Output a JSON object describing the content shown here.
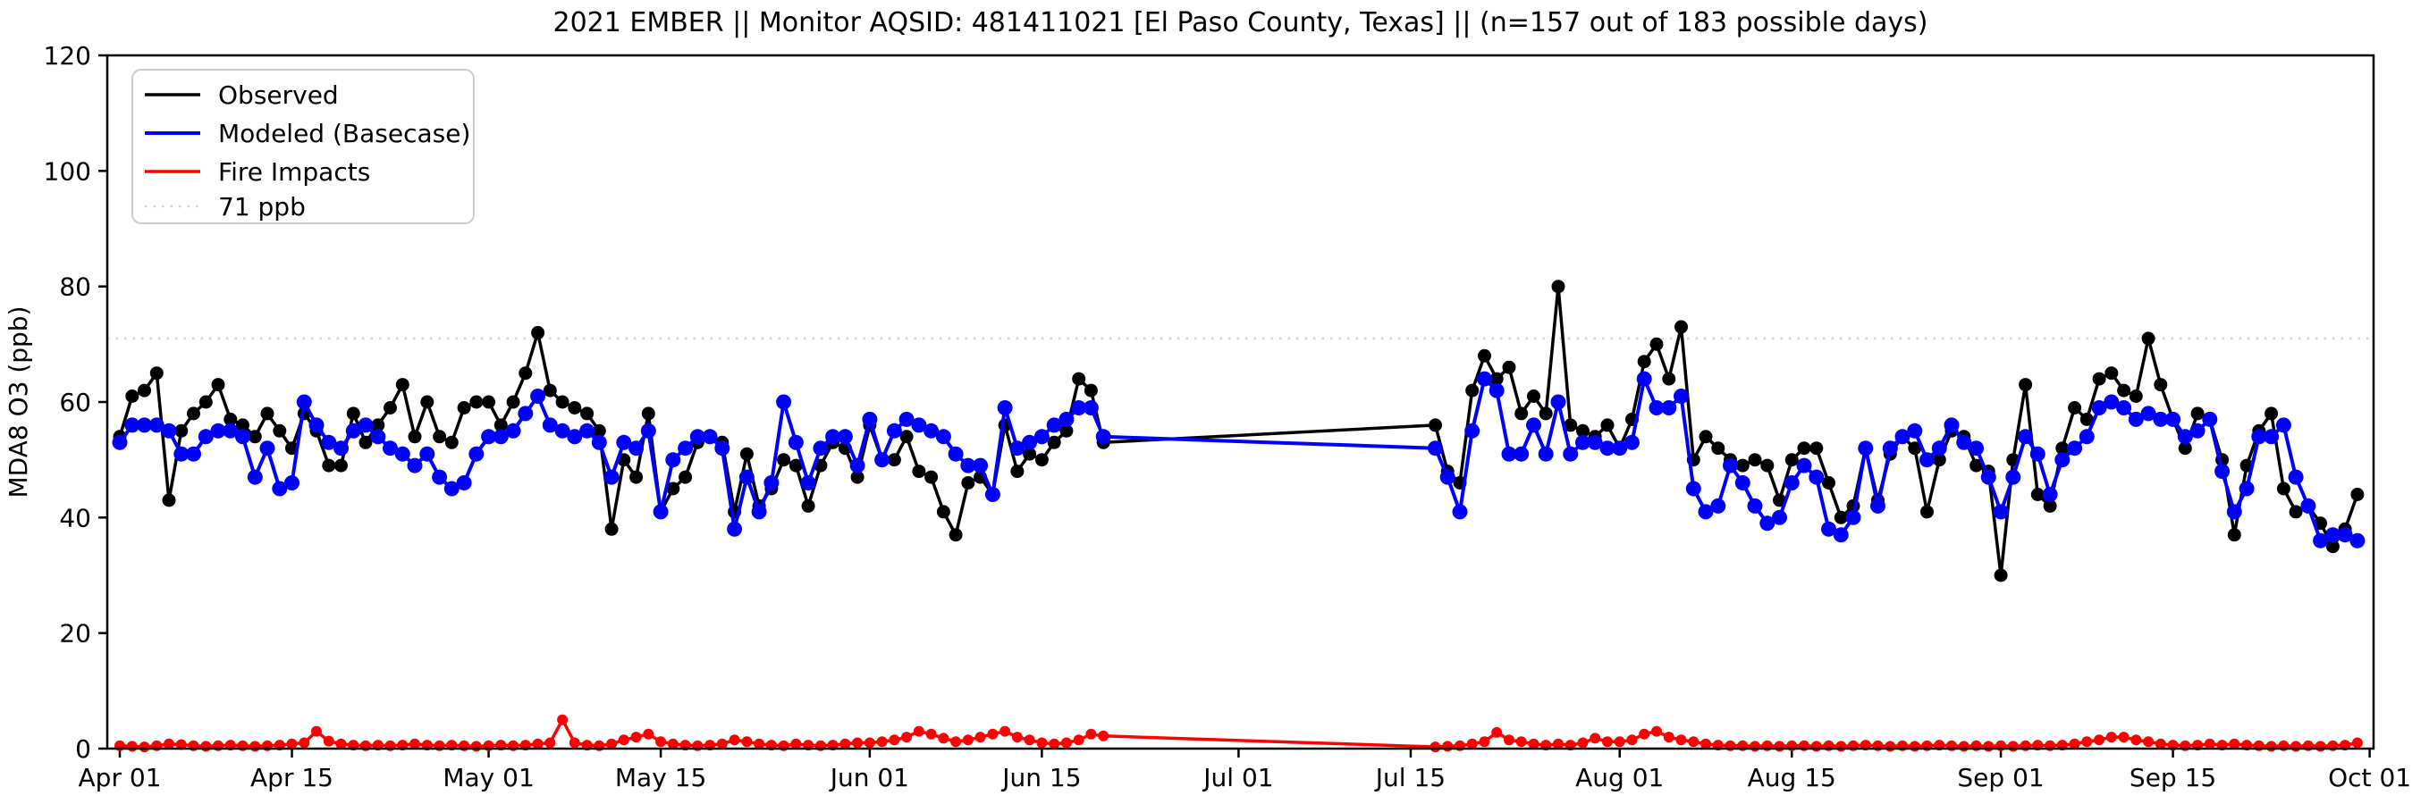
{
  "title": "2021 EMBER || Monitor AQSID: 481411021 [El Paso County, Texas] || (n=157 out of 183 possible days)",
  "chart_data": {
    "type": "line",
    "title": "2021 EMBER || Monitor AQSID: 481411021 [El Paso County, Texas] || (n=157 out of 183 possible days)",
    "xlabel": "",
    "ylabel": "MDA8 O3 (ppb)",
    "ylim": [
      0,
      120
    ],
    "yticks": [
      0,
      20,
      40,
      60,
      80,
      100,
      120
    ],
    "x_unit": "daily values, days indexed from Apr 01 2021 through Sep 30 2021; null = missing day (n=157 of 183)",
    "xtick_labels": [
      "Apr 01",
      "Apr 15",
      "May 01",
      "May 15",
      "Jun 01",
      "Jun 15",
      "Jul 01",
      "Jul 15",
      "Aug 01",
      "Aug 15",
      "Sep 01",
      "Sep 15",
      "Oct 01"
    ],
    "xtick_days": [
      0,
      14,
      30,
      44,
      61,
      75,
      91,
      105,
      122,
      136,
      153,
      167,
      183
    ],
    "threshold": {
      "value": 71,
      "label": "71 ppb",
      "color": "#d3d3d3"
    },
    "grid": false,
    "legend_position": "upper-left",
    "legend": [
      "Observed",
      "Modeled (Basecase)",
      "Fire Impacts",
      "71 ppb"
    ],
    "colors": {
      "observed": "#000000",
      "modeled": "#0000ff",
      "fire": "#ff0000",
      "threshold": "#d3d3d3"
    },
    "series": [
      {
        "name": "Observed",
        "color": "#000000",
        "values": [
          54,
          61,
          62,
          65,
          43,
          55,
          58,
          60,
          63,
          57,
          56,
          54,
          58,
          55,
          52,
          58,
          55,
          49,
          49,
          58,
          53,
          56,
          59,
          63,
          54,
          60,
          54,
          53,
          59,
          60,
          60,
          56,
          60,
          65,
          72,
          62,
          60,
          59,
          58,
          55,
          38,
          50,
          47,
          58,
          41,
          45,
          47,
          53,
          54,
          53,
          41,
          51,
          42,
          45,
          50,
          49,
          42,
          49,
          53,
          52,
          47,
          56,
          50,
          50,
          54,
          48,
          47,
          41,
          37,
          46,
          47,
          44,
          56,
          48,
          51,
          50,
          53,
          55,
          64,
          62,
          53,
          null,
          null,
          null,
          null,
          null,
          null,
          null,
          null,
          null,
          null,
          null,
          null,
          null,
          null,
          null,
          null,
          null,
          null,
          null,
          null,
          null,
          null,
          null,
          null,
          null,
          null,
          56,
          48,
          46,
          62,
          68,
          64,
          66,
          58,
          61,
          58,
          80,
          56,
          55,
          54,
          56,
          52,
          57,
          67,
          70,
          64,
          73,
          50,
          54,
          52,
          50,
          49,
          50,
          49,
          43,
          50,
          52,
          52,
          46,
          40,
          42,
          52,
          43,
          51,
          54,
          52,
          41,
          50,
          55,
          54,
          49,
          48,
          30,
          50,
          63,
          44,
          42,
          52,
          59,
          57,
          64,
          65,
          62,
          61,
          71,
          63,
          57,
          52,
          58,
          57,
          50,
          37,
          49,
          55,
          58,
          45,
          41,
          42,
          39,
          35,
          38,
          44
        ]
      },
      {
        "name": "Modeled (Basecase)",
        "color": "#0000ff",
        "values": [
          53,
          56,
          56,
          56,
          55,
          51,
          51,
          54,
          55,
          55,
          54,
          47,
          52,
          45,
          46,
          60,
          56,
          53,
          52,
          55,
          56,
          54,
          52,
          51,
          49,
          51,
          47,
          45,
          46,
          51,
          54,
          54,
          55,
          58,
          61,
          56,
          55,
          54,
          55,
          53,
          47,
          53,
          52,
          55,
          41,
          50,
          52,
          54,
          54,
          52,
          38,
          47,
          41,
          46,
          60,
          53,
          46,
          52,
          54,
          54,
          49,
          57,
          50,
          55,
          57,
          56,
          55,
          54,
          51,
          49,
          49,
          44,
          59,
          52,
          53,
          54,
          56,
          57,
          59,
          59,
          54,
          null,
          null,
          null,
          null,
          null,
          null,
          null,
          null,
          null,
          null,
          null,
          null,
          null,
          null,
          null,
          null,
          null,
          null,
          null,
          null,
          null,
          null,
          null,
          null,
          null,
          null,
          52,
          47,
          41,
          55,
          64,
          62,
          51,
          51,
          56,
          51,
          60,
          51,
          53,
          53,
          52,
          52,
          53,
          64,
          59,
          59,
          61,
          45,
          41,
          42,
          49,
          46,
          42,
          39,
          40,
          46,
          49,
          47,
          38,
          37,
          40,
          52,
          42,
          52,
          54,
          55,
          50,
          52,
          56,
          53,
          52,
          47,
          41,
          47,
          54,
          51,
          44,
          50,
          52,
          54,
          59,
          60,
          59,
          57,
          58,
          57,
          57,
          54,
          55,
          57,
          48,
          41,
          45,
          54,
          54,
          56,
          47,
          42,
          36,
          37,
          37,
          36
        ]
      },
      {
        "name": "Fire Impacts",
        "color": "#ff0000",
        "values": [
          0.5,
          0.4,
          0.3,
          0.5,
          0.8,
          0.7,
          0.5,
          0.4,
          0.5,
          0.6,
          0.5,
          0.4,
          0.5,
          0.6,
          0.8,
          1.0,
          3.0,
          1.3,
          0.8,
          0.6,
          0.5,
          0.6,
          0.5,
          0.6,
          0.8,
          0.6,
          0.5,
          0.6,
          0.5,
          0.4,
          0.5,
          0.6,
          0.5,
          0.6,
          0.8,
          1.0,
          5.0,
          1.0,
          0.6,
          0.5,
          0.8,
          1.5,
          2.0,
          2.5,
          1.2,
          0.8,
          0.6,
          0.5,
          0.6,
          0.8,
          1.5,
          1.2,
          0.8,
          0.6,
          0.5,
          0.8,
          0.6,
          0.5,
          0.6,
          0.8,
          1.0,
          1.0,
          1.2,
          1.5,
          2.0,
          3.0,
          2.5,
          1.8,
          1.2,
          1.5,
          2.0,
          2.5,
          3.0,
          2.0,
          1.5,
          1.0,
          0.8,
          1.0,
          1.5,
          2.5,
          2.2,
          null,
          null,
          null,
          null,
          null,
          null,
          null,
          null,
          null,
          null,
          null,
          null,
          null,
          null,
          null,
          null,
          null,
          null,
          null,
          null,
          null,
          null,
          null,
          null,
          null,
          null,
          0.3,
          0.4,
          0.5,
          0.8,
          1.2,
          2.8,
          1.5,
          1.2,
          0.8,
          0.6,
          0.8,
          0.6,
          1.0,
          1.8,
          1.2,
          1.2,
          1.5,
          2.5,
          3.0,
          2.0,
          1.5,
          1.2,
          0.8,
          0.6,
          0.5,
          0.5,
          0.4,
          0.5,
          0.4,
          0.5,
          0.5,
          0.4,
          0.5,
          0.4,
          0.5,
          0.6,
          0.5,
          0.4,
          0.5,
          0.4,
          0.5,
          0.6,
          0.5,
          0.4,
          0.5,
          0.4,
          0.5,
          0.4,
          0.5,
          0.6,
          0.5,
          0.6,
          0.8,
          1.2,
          1.5,
          2.0,
          2.0,
          1.5,
          1.2,
          0.8,
          0.6,
          0.5,
          0.6,
          0.8,
          0.6,
          0.8,
          0.6,
          0.5,
          0.4,
          0.5,
          0.4,
          0.5,
          0.4,
          0.5,
          0.6,
          1.0
        ]
      }
    ]
  }
}
